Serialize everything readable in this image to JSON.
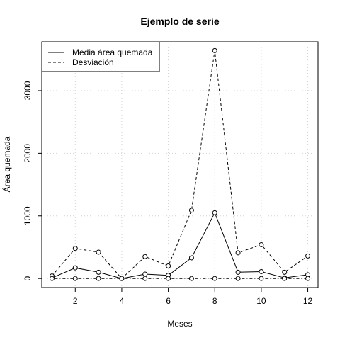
{
  "chart_data": {
    "type": "line",
    "title": "Ejemplo de serie",
    "xlabel": "Meses",
    "ylabel": "Área quemada",
    "x": [
      1,
      2,
      3,
      4,
      5,
      6,
      7,
      8,
      9,
      10,
      11,
      12
    ],
    "xlim": [
      0.56,
      12.44
    ],
    "ylim": [
      -145,
      3780
    ],
    "xticks": [
      2,
      4,
      6,
      8,
      10,
      12
    ],
    "yticks": [
      0,
      1000,
      2000,
      3000
    ],
    "grid": true,
    "legend_position": "top-left",
    "series": [
      {
        "name": "Media área quemada",
        "line": "solid",
        "marker": "circle",
        "values": [
          10,
          170,
          100,
          0,
          70,
          50,
          330,
          1050,
          100,
          110,
          10,
          60
        ]
      },
      {
        "name": "Desviación",
        "line": "dashed",
        "marker": "circle",
        "values": [
          40,
          480,
          420,
          0,
          350,
          200,
          1090,
          3640,
          410,
          540,
          100,
          360
        ]
      },
      {
        "line": "dotted-dashed",
        "marker": "circle",
        "values": [
          0,
          0,
          0,
          0,
          0,
          0,
          0,
          0,
          0,
          0,
          0,
          0
        ]
      }
    ]
  }
}
